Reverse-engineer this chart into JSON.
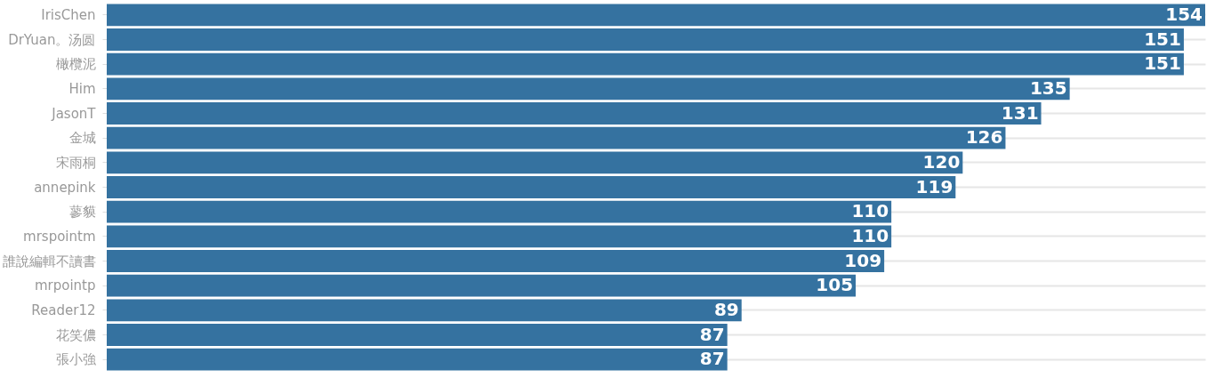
{
  "chart_data": {
    "type": "bar",
    "orientation": "horizontal",
    "categories": [
      "IrisChen",
      "DrYuan。汤圆",
      "橄欖泥",
      "Him",
      "JasonT",
      "金城",
      "宋雨桐",
      "annepink",
      "蓼貘",
      "mrspointm",
      "誰說編輯不讀書",
      "mrpointp",
      "Reader12",
      "花笑儂",
      "張小強"
    ],
    "values": [
      154,
      151,
      151,
      135,
      131,
      126,
      120,
      119,
      110,
      110,
      109,
      105,
      89,
      87,
      87
    ],
    "color": "#3572a0",
    "data_labels": true,
    "grid": "y",
    "tick_labels": "y"
  }
}
